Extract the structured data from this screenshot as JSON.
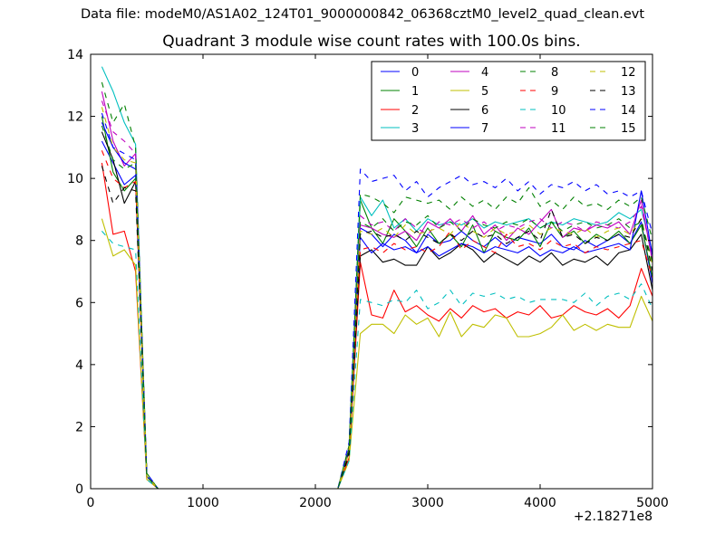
{
  "suptitle": "Data file: modeM0/AS1A02_124T01_9000000842_06368cztM0_level2_quad_clean.evt",
  "x_offset_label": "+2.18271e8",
  "chart_data": {
    "type": "line",
    "title": "Quadrant 3 module wise count rates with 100.0s bins.",
    "xlabel": "",
    "ylabel": "",
    "xlim": [
      0,
      5000
    ],
    "ylim": [
      0,
      14
    ],
    "xticks": [
      0,
      1000,
      2000,
      3000,
      4000,
      5000
    ],
    "yticks": [
      0,
      2,
      4,
      6,
      8,
      10,
      12,
      14
    ],
    "x_offset": 218271000,
    "legend_position": "top-right",
    "legend_columns": 4,
    "grid": false,
    "x": [
      100,
      200,
      300,
      400,
      500,
      600,
      700,
      800,
      900,
      1000,
      1100,
      1200,
      1300,
      1400,
      1500,
      1600,
      1700,
      1800,
      1900,
      2000,
      2100,
      2200,
      2300,
      2400,
      2500,
      2600,
      2700,
      2800,
      2900,
      3000,
      3100,
      3200,
      3300,
      3400,
      3500,
      3600,
      3700,
      3800,
      3900,
      4000,
      4100,
      4200,
      4300,
      4400,
      4500,
      4600,
      4700,
      4800,
      4900,
      5000
    ],
    "series": [
      {
        "name": "0",
        "color": "#0000ff",
        "dash": false,
        "values": [
          11.2,
          10.5,
          9.8,
          10.1,
          0.4,
          0,
          0,
          0,
          0,
          0,
          0,
          0,
          0,
          0,
          0,
          0,
          0,
          0,
          0,
          0,
          0,
          0,
          1.2,
          8.4,
          8.2,
          7.8,
          8.2,
          8.0,
          7.6,
          8.2,
          7.9,
          8.0,
          8.3,
          8.0,
          7.8,
          8.1,
          7.8,
          8.1,
          8.0,
          7.9,
          8.2,
          7.8,
          7.7,
          8.0,
          7.8,
          8.0,
          8.2,
          7.9,
          8.6,
          6.6
        ]
      },
      {
        "name": "1",
        "color": "#008000",
        "dash": false,
        "values": [
          12.0,
          10.2,
          9.6,
          10.0,
          0.4,
          0,
          0,
          0,
          0,
          0,
          0,
          0,
          0,
          0,
          0,
          0,
          0,
          0,
          0,
          0,
          0,
          0,
          1.2,
          9.3,
          8.4,
          7.9,
          8.7,
          8.3,
          7.8,
          8.4,
          7.9,
          8.2,
          7.8,
          8.5,
          7.6,
          8.3,
          8.1,
          8.0,
          8.4,
          7.8,
          8.6,
          8.1,
          8.3,
          7.9,
          8.2,
          8.0,
          8.3,
          7.9,
          8.5,
          6.8
        ]
      },
      {
        "name": "2",
        "color": "#ff0000",
        "dash": false,
        "values": [
          10.5,
          8.2,
          8.3,
          7.0,
          0.3,
          0,
          0,
          0,
          0,
          0,
          0,
          0,
          0,
          0,
          0,
          0,
          0,
          0,
          0,
          0,
          0,
          0,
          1.0,
          7.3,
          5.6,
          5.5,
          6.4,
          5.7,
          5.9,
          5.6,
          5.4,
          5.8,
          5.5,
          5.9,
          5.7,
          5.8,
          5.5,
          5.7,
          5.6,
          5.9,
          5.5,
          5.6,
          5.9,
          5.7,
          5.6,
          5.8,
          5.5,
          5.9,
          7.1,
          6.2
        ]
      },
      {
        "name": "3",
        "color": "#00bfbf",
        "dash": false,
        "values": [
          13.6,
          12.8,
          11.8,
          11.1,
          0.4,
          0,
          0,
          0,
          0,
          0,
          0,
          0,
          0,
          0,
          0,
          0,
          0,
          0,
          0,
          0,
          0,
          0,
          1.3,
          9.4,
          8.8,
          9.3,
          8.4,
          8.7,
          8.3,
          8.7,
          8.5,
          8.6,
          8.5,
          8.7,
          8.4,
          8.6,
          8.5,
          8.6,
          8.7,
          8.4,
          8.6,
          8.5,
          8.7,
          8.6,
          8.5,
          8.6,
          8.9,
          8.7,
          9.0,
          7.6
        ]
      },
      {
        "name": "4",
        "color": "#bf00bf",
        "dash": false,
        "values": [
          12.8,
          11.2,
          10.4,
          10.8,
          0.4,
          0,
          0,
          0,
          0,
          0,
          0,
          0,
          0,
          0,
          0,
          0,
          0,
          0,
          0,
          0,
          0,
          0,
          1.3,
          8.5,
          8.4,
          8.2,
          8.1,
          8.3,
          8.0,
          8.6,
          8.4,
          8.7,
          8.3,
          8.8,
          8.2,
          8.5,
          8.0,
          8.4,
          8.2,
          8.6,
          9.0,
          8.1,
          8.4,
          8.3,
          8.5,
          8.4,
          8.6,
          8.2,
          9.3,
          7.3
        ]
      },
      {
        "name": "5",
        "color": "#bfbf00",
        "dash": false,
        "values": [
          8.7,
          7.5,
          7.7,
          7.2,
          0.3,
          0,
          0,
          0,
          0,
          0,
          0,
          0,
          0,
          0,
          0,
          0,
          0,
          0,
          0,
          0,
          0,
          0,
          0.9,
          5.0,
          5.3,
          5.3,
          5.0,
          5.6,
          5.3,
          5.5,
          4.9,
          5.7,
          4.9,
          5.3,
          5.2,
          5.6,
          5.5,
          4.9,
          4.9,
          5.0,
          5.2,
          5.6,
          5.1,
          5.3,
          5.1,
          5.3,
          5.2,
          5.2,
          6.2,
          5.4
        ]
      },
      {
        "name": "6",
        "color": "#000000",
        "dash": false,
        "values": [
          11.5,
          10.6,
          9.2,
          9.9,
          0.4,
          0,
          0,
          0,
          0,
          0,
          0,
          0,
          0,
          0,
          0,
          0,
          0,
          0,
          0,
          0,
          0,
          0,
          1.2,
          7.5,
          7.7,
          7.3,
          7.4,
          7.2,
          7.2,
          7.8,
          7.4,
          7.6,
          7.9,
          7.7,
          7.3,
          7.6,
          7.4,
          7.2,
          7.5,
          7.3,
          7.6,
          7.2,
          7.4,
          7.3,
          7.5,
          7.2,
          7.6,
          7.7,
          8.2,
          6.4
        ]
      },
      {
        "name": "7",
        "color": "#0000ff",
        "dash": false,
        "values": [
          11.8,
          11.0,
          10.5,
          10.3,
          0.4,
          0,
          0,
          0,
          0,
          0,
          0,
          0,
          0,
          0,
          0,
          0,
          0,
          0,
          0,
          0,
          0,
          0,
          1.3,
          8.1,
          7.6,
          7.9,
          7.7,
          7.8,
          7.6,
          7.8,
          7.5,
          7.7,
          7.9,
          7.8,
          7.6,
          7.8,
          7.7,
          7.6,
          7.8,
          7.5,
          7.7,
          7.6,
          7.8,
          7.6,
          7.7,
          7.8,
          7.9,
          7.7,
          9.6,
          7.5
        ]
      },
      {
        "name": "8",
        "color": "#008000",
        "dash": true,
        "values": [
          13.1,
          11.8,
          12.4,
          11.0,
          0.5,
          0,
          0,
          0,
          0,
          0,
          0,
          0,
          0,
          0,
          0,
          0,
          0,
          0,
          0,
          0,
          0,
          0,
          1.4,
          9.5,
          9.4,
          9.2,
          8.9,
          9.4,
          9.3,
          9.2,
          9.3,
          9.0,
          9.4,
          9.1,
          9.3,
          9.0,
          9.4,
          9.2,
          9.7,
          9.1,
          9.3,
          9.0,
          9.4,
          9.1,
          9.2,
          9.0,
          9.3,
          9.1,
          9.4,
          8.0
        ]
      },
      {
        "name": "9",
        "color": "#ff0000",
        "dash": true,
        "values": [
          10.9,
          10.0,
          9.7,
          9.9,
          0.4,
          0,
          0,
          0,
          0,
          0,
          0,
          0,
          0,
          0,
          0,
          0,
          0,
          0,
          0,
          0,
          0,
          0,
          1.2,
          7.7,
          7.8,
          7.6,
          7.9,
          7.7,
          7.8,
          7.6,
          7.8,
          8.3,
          7.7,
          8.0,
          7.8,
          7.6,
          8.2,
          7.8,
          7.9,
          7.7,
          8.0,
          7.8,
          7.9,
          7.6,
          7.8,
          7.7,
          7.8,
          7.9,
          8.0,
          6.8
        ]
      },
      {
        "name": "10",
        "color": "#00bfbf",
        "dash": true,
        "values": [
          8.3,
          7.9,
          7.8,
          7.7,
          0.3,
          0,
          0,
          0,
          0,
          0,
          0,
          0,
          0,
          0,
          0,
          0,
          0,
          0,
          0,
          0,
          0,
          0,
          0.9,
          6.1,
          6.0,
          5.9,
          6.1,
          6.0,
          6.4,
          5.8,
          6.0,
          6.4,
          5.9,
          6.3,
          6.2,
          6.3,
          6.1,
          6.2,
          6.0,
          6.1,
          6.1,
          6.1,
          6.0,
          6.3,
          5.9,
          6.2,
          6.3,
          6.1,
          6.6,
          5.8
        ]
      },
      {
        "name": "11",
        "color": "#bf00bf",
        "dash": true,
        "values": [
          12.5,
          11.5,
          11.2,
          10.8,
          0.4,
          0,
          0,
          0,
          0,
          0,
          0,
          0,
          0,
          0,
          0,
          0,
          0,
          0,
          0,
          0,
          0,
          0,
          1.3,
          8.8,
          8.5,
          8.6,
          8.3,
          8.7,
          8.4,
          8.2,
          8.6,
          8.5,
          8.7,
          8.4,
          8.6,
          8.3,
          8.5,
          8.4,
          8.6,
          8.7,
          8.4,
          8.6,
          8.5,
          8.3,
          8.6,
          8.5,
          8.4,
          8.6,
          9.1,
          7.4
        ]
      },
      {
        "name": "12",
        "color": "#bfbf00",
        "dash": true,
        "values": [
          12.3,
          11.0,
          10.6,
          10.5,
          0.4,
          0,
          0,
          0,
          0,
          0,
          0,
          0,
          0,
          0,
          0,
          0,
          0,
          0,
          0,
          0,
          0,
          0,
          1.2,
          8.3,
          8.2,
          8.4,
          8.1,
          8.5,
          8.2,
          8.3,
          8.4,
          8.2,
          8.6,
          8.3,
          8.1,
          8.4,
          8.2,
          8.3,
          8.5,
          8.2,
          8.4,
          8.3,
          8.2,
          8.4,
          8.1,
          8.3,
          8.4,
          8.2,
          8.7,
          7.2
        ]
      },
      {
        "name": "13",
        "color": "#000000",
        "dash": true,
        "values": [
          10.4,
          9.2,
          9.7,
          9.6,
          0.4,
          0,
          0,
          0,
          0,
          0,
          0,
          0,
          0,
          0,
          0,
          0,
          0,
          0,
          0,
          0,
          0,
          0,
          1.1,
          8.2,
          8.3,
          8.1,
          8.2,
          8.0,
          8.3,
          8.1,
          7.9,
          8.2,
          8.0,
          8.3,
          8.1,
          8.2,
          7.9,
          8.1,
          8.3,
          8.0,
          9.0,
          8.1,
          8.2,
          7.9,
          8.1,
          8.0,
          8.2,
          8.1,
          8.7,
          7.0
        ]
      },
      {
        "name": "14",
        "color": "#0000ff",
        "dash": true,
        "values": [
          12.1,
          11.0,
          10.8,
          10.6,
          0.5,
          0,
          0,
          0,
          0,
          0,
          0,
          0,
          0,
          0,
          0,
          0,
          0,
          0,
          0,
          0,
          0,
          0,
          1.5,
          10.3,
          9.9,
          10.0,
          10.1,
          9.6,
          9.9,
          9.4,
          9.7,
          9.9,
          10.1,
          9.8,
          9.9,
          9.7,
          10.0,
          9.6,
          9.9,
          9.5,
          9.8,
          9.7,
          9.9,
          9.6,
          9.8,
          9.5,
          9.6,
          9.4,
          9.6,
          8.2
        ]
      },
      {
        "name": "15",
        "color": "#008000",
        "dash": true,
        "values": [
          11.7,
          10.6,
          10.3,
          10.5,
          0.4,
          0,
          0,
          0,
          0,
          0,
          0,
          0,
          0,
          0,
          0,
          0,
          0,
          0,
          0,
          0,
          0,
          0,
          1.3,
          8.6,
          8.4,
          8.7,
          8.3,
          8.6,
          8.5,
          8.8,
          8.4,
          8.6,
          8.3,
          8.7,
          8.5,
          8.4,
          8.6,
          8.5,
          8.7,
          8.4,
          8.6,
          8.3,
          8.5,
          8.6,
          8.4,
          8.5,
          8.7,
          8.4,
          8.6,
          7.3
        ]
      }
    ]
  }
}
